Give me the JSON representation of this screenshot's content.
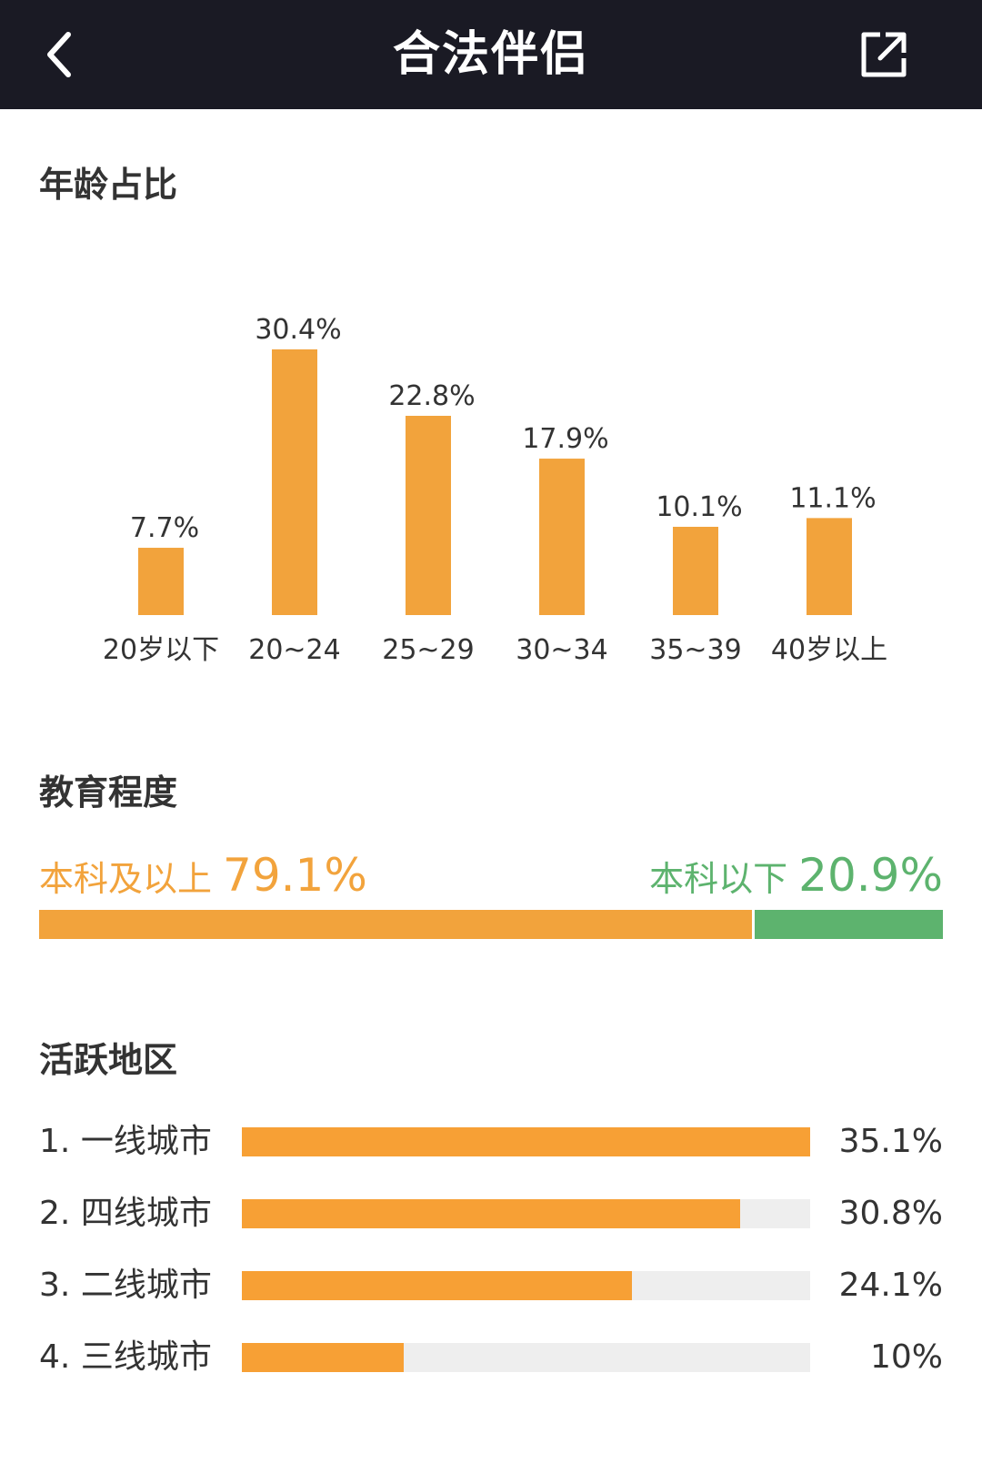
{
  "header": {
    "title": "合法伴侣",
    "back_icon": "chevron-left-icon",
    "share_icon": "share-external-icon"
  },
  "colors": {
    "header_bg": "#1a1a24",
    "orange": "#f2a33c",
    "green": "#5db36e",
    "track": "#eeeeee"
  },
  "sections": {
    "age_title": "年龄占比",
    "edu_title": "教育程度",
    "region_title": "活跃地区"
  },
  "chart_data": [
    {
      "type": "bar",
      "title": "年龄占比",
      "categories": [
        "20岁以下",
        "20~24",
        "25~29",
        "30~34",
        "35~39",
        "40岁以上"
      ],
      "values": [
        7.7,
        30.4,
        22.8,
        17.9,
        10.1,
        11.1
      ],
      "labels": [
        "7.7%",
        "30.4%",
        "22.8%",
        "17.9%",
        "10.1%",
        "11.1%"
      ],
      "unit": "%",
      "ylim": [
        0,
        30.4
      ],
      "grid": false
    },
    {
      "type": "bar",
      "title": "教育程度",
      "orientation": "horizontal-stacked",
      "categories": [
        "本科及以上",
        "本科以下"
      ],
      "values": [
        79.1,
        20.9
      ],
      "labels": [
        "79.1%",
        "20.9%"
      ],
      "colors": [
        "#f2a33c",
        "#5db36e"
      ],
      "unit": "%"
    },
    {
      "type": "bar",
      "title": "活跃地区",
      "orientation": "horizontal",
      "ranks": [
        "1.",
        "2.",
        "3.",
        "4."
      ],
      "categories": [
        "一线城市",
        "四线城市",
        "二线城市",
        "三线城市"
      ],
      "values": [
        35.1,
        30.8,
        24.1,
        10
      ],
      "labels": [
        "35.1%",
        "30.8%",
        "24.1%",
        "10%"
      ],
      "unit": "%",
      "xlim": [
        0,
        35.1
      ]
    }
  ]
}
